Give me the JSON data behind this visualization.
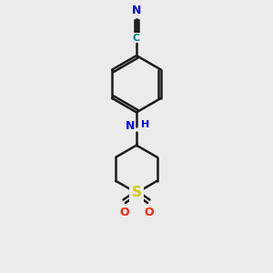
{
  "bg_color": "#ebebeb",
  "bond_color": "#1a1a1a",
  "bond_width": 1.8,
  "atom_colors": {
    "N_amine": "#0000ff",
    "N_nitrile": "#0000cd",
    "C_nitrile": "#008080",
    "S": "#cccc00",
    "O": "#ff2200"
  },
  "figsize": [
    3.0,
    3.0
  ],
  "dpi": 100,
  "xlim": [
    0,
    10
  ],
  "ylim": [
    0,
    10
  ]
}
